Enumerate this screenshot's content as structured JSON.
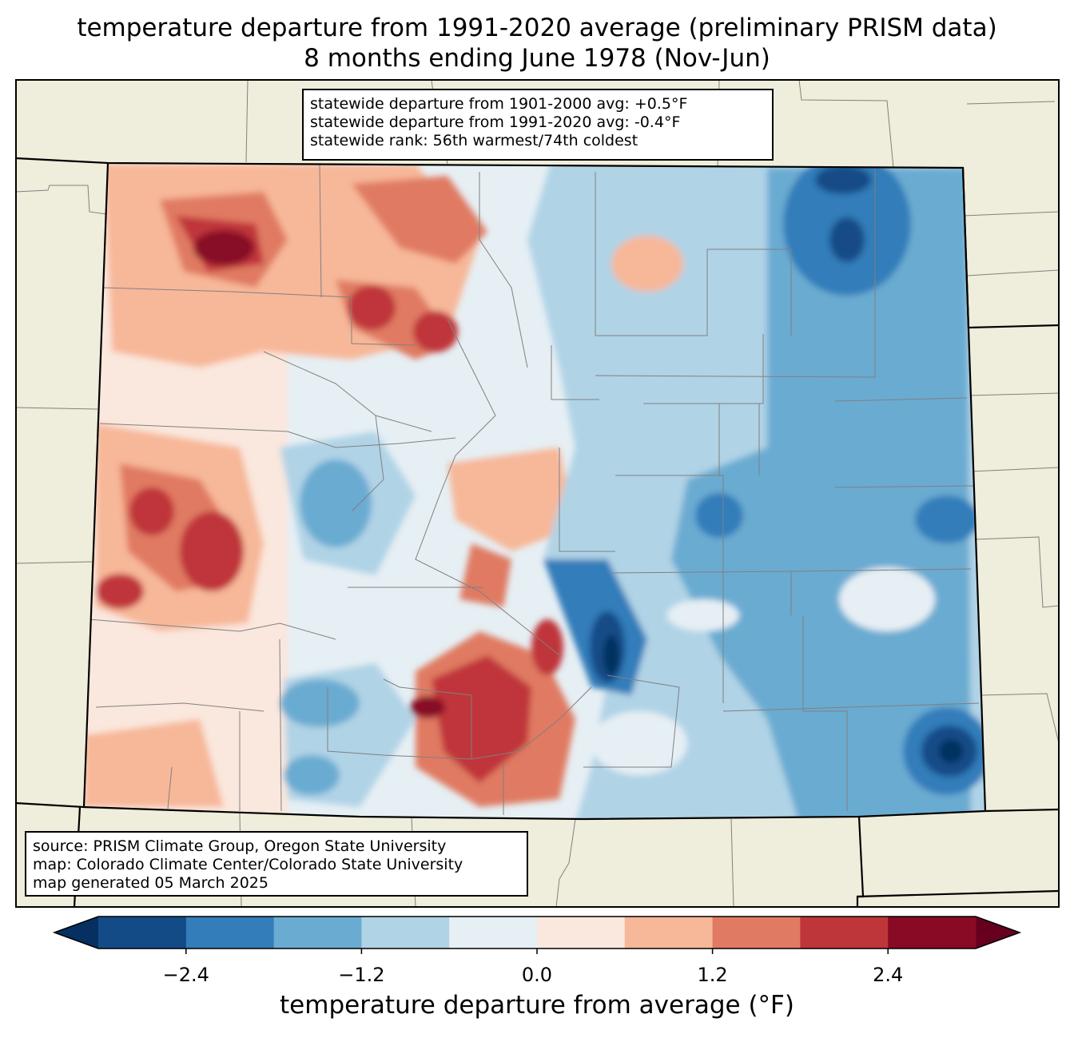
{
  "title": {
    "line1": "temperature departure from 1991-2020 average (preliminary PRISM data)",
    "line2": "8 months ending June 1978 (Nov-Jun)"
  },
  "stats_box": {
    "line1": "statewide departure from 1901-2000 avg: +0.5°F",
    "line2": "statewide departure from 1991-2020 avg: -0.4°F",
    "line3": "statewide rank: 56th warmest/74th coldest"
  },
  "source_box": {
    "line1": "source: PRISM Climate Group, Oregon State University",
    "line2": "map: Colorado Climate Center/Colorado State University",
    "line3": "map generated 05 March 2025"
  },
  "colorbar": {
    "title": "temperature departure from average (°F)",
    "tick_labels": [
      "−2.4",
      "−1.2",
      "0.0",
      "1.2",
      "2.4"
    ],
    "tick_values": [
      -2.4,
      -1.2,
      0.0,
      1.2,
      2.4
    ],
    "bounds": [
      -3.0,
      -2.4,
      -1.8,
      -1.2,
      -0.6,
      0.0,
      0.6,
      1.2,
      1.8,
      2.4,
      3.0
    ],
    "colors": [
      "#053061",
      "#134b87",
      "#327dba",
      "#6aabd1",
      "#b0d3e6",
      "#e6eff4",
      "#fae7dd",
      "#f7b799",
      "#e07a62",
      "#bf363a",
      "#880a25",
      "#67001f"
    ]
  },
  "map_colors": {
    "background": "#efeddb",
    "state_border": "#000000",
    "county_lines": "#808080"
  }
}
